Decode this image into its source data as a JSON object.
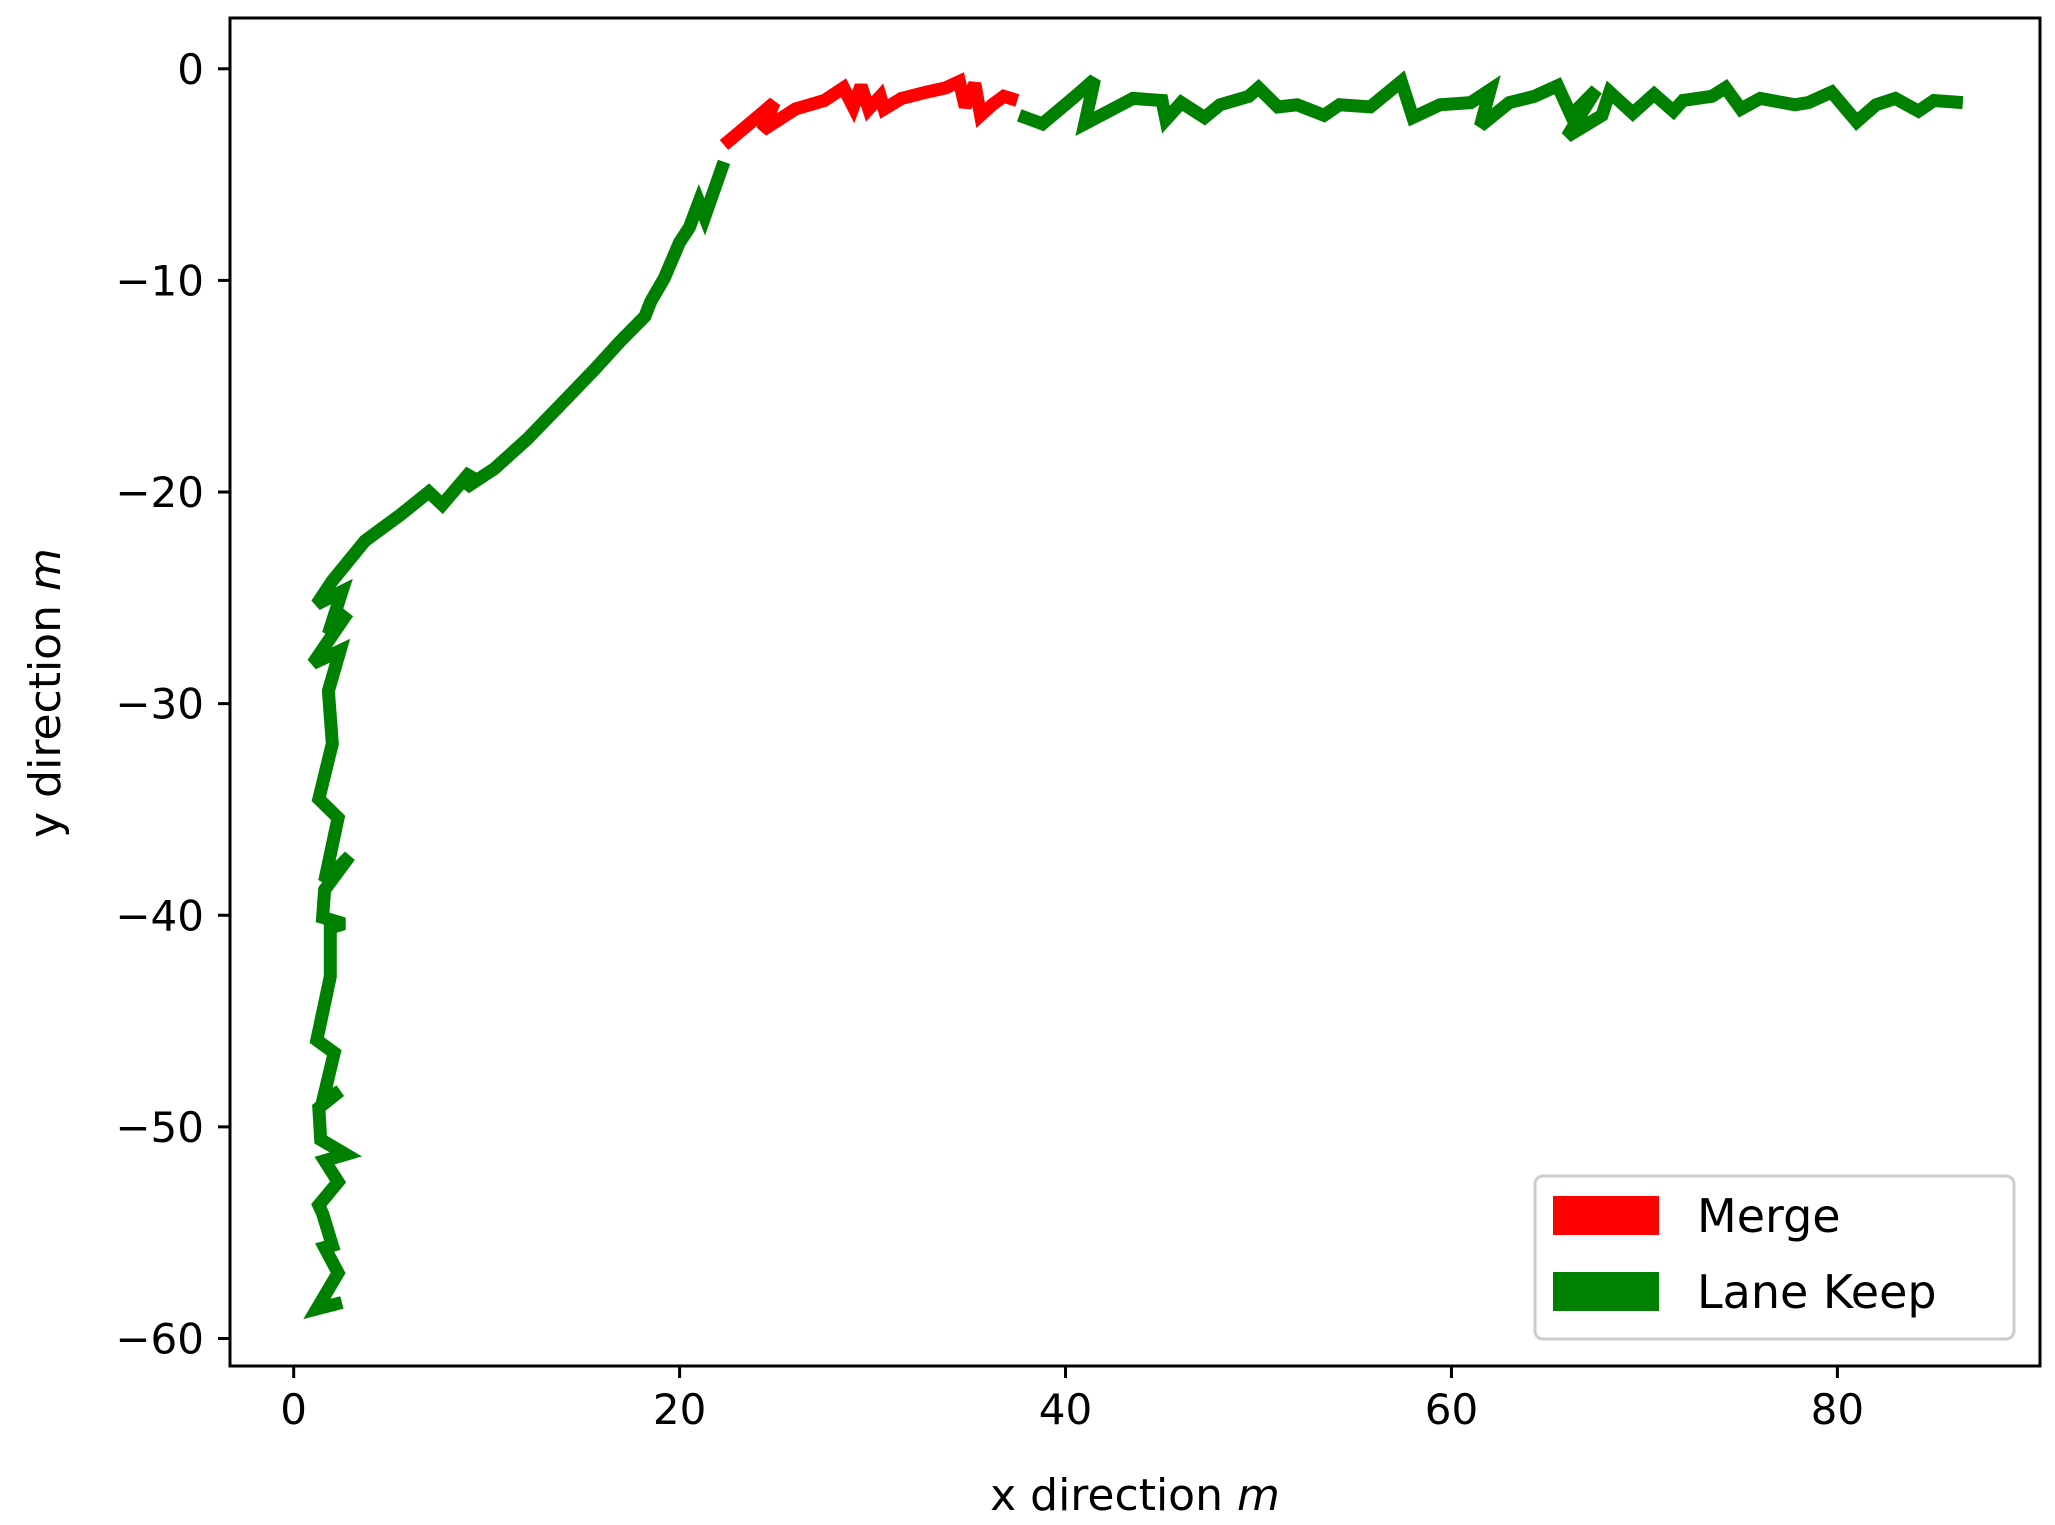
{
  "chart_data": {
    "type": "line",
    "xlabel": "x direction",
    "xlabel_unit": "m",
    "ylabel": "y direction",
    "ylabel_unit": "m",
    "xlim": [
      -3.3,
      90.5
    ],
    "ylim": [
      -61.3,
      2.4
    ],
    "xticks": [
      0,
      20,
      40,
      60,
      80
    ],
    "yticks": [
      0,
      -10,
      -20,
      -30,
      -40,
      -50,
      -60
    ],
    "xtick_labels": [
      "0",
      "20",
      "40",
      "60",
      "80"
    ],
    "ytick_labels": [
      "0",
      "−10",
      "−20",
      "−30",
      "−40",
      "−50",
      "−60"
    ],
    "grid": false,
    "legend_position": "lower-right",
    "series": [
      {
        "name": "Lane Keep",
        "color": "#008000",
        "points": [
          [
            2.5,
            -58.3
          ],
          [
            1.2,
            -58.6
          ],
          [
            2.3,
            -56.9
          ],
          [
            1.6,
            -55.7
          ],
          [
            2.0,
            -55.6
          ],
          [
            1.5,
            -54.1
          ],
          [
            1.3,
            -53.7
          ],
          [
            2.3,
            -52.6
          ],
          [
            1.6,
            -51.6
          ],
          [
            2.7,
            -51.3
          ],
          [
            1.4,
            -50.6
          ],
          [
            1.3,
            -49.1
          ],
          [
            2.4,
            -48.3
          ],
          [
            1.5,
            -48.8
          ],
          [
            2.1,
            -46.5
          ],
          [
            1.2,
            -45.9
          ],
          [
            1.9,
            -42.9
          ],
          [
            1.9,
            -40.6
          ],
          [
            2.6,
            -40.4
          ],
          [
            1.5,
            -40.1
          ],
          [
            1.6,
            -38.8
          ],
          [
            2.9,
            -37.2
          ],
          [
            1.6,
            -38.4
          ],
          [
            2.3,
            -35.4
          ],
          [
            1.3,
            -34.5
          ],
          [
            2.0,
            -31.9
          ],
          [
            1.8,
            -29.4
          ],
          [
            2.4,
            -27.5
          ],
          [
            1.0,
            -28.1
          ],
          [
            2.8,
            -25.7
          ],
          [
            1.8,
            -26.7
          ],
          [
            2.5,
            -24.7
          ],
          [
            1.2,
            -25.3
          ],
          [
            2.0,
            -24.2
          ],
          [
            3.7,
            -22.3
          ],
          [
            5.5,
            -21.1
          ],
          [
            7.0,
            -20.0
          ],
          [
            7.7,
            -20.6
          ],
          [
            9.2,
            -19.0
          ],
          [
            8.9,
            -19.8
          ],
          [
            10.4,
            -18.9
          ],
          [
            12.1,
            -17.5
          ],
          [
            13.8,
            -15.9
          ],
          [
            15.6,
            -14.2
          ],
          [
            16.9,
            -12.9
          ],
          [
            18.2,
            -11.7
          ],
          [
            18.5,
            -11.0
          ],
          [
            19.2,
            -9.9
          ],
          [
            20.0,
            -8.2
          ],
          [
            20.5,
            -7.5
          ],
          [
            21.0,
            -6.3
          ],
          [
            21.3,
            -7.0
          ],
          [
            22.3,
            -4.4
          ]
        ]
      },
      {
        "name": "Merge",
        "color": "#ff0000",
        "points": [
          [
            22.3,
            -3.6
          ],
          [
            24.0,
            -2.3
          ],
          [
            24.9,
            -1.6
          ],
          [
            24.3,
            -2.9
          ],
          [
            26.0,
            -1.9
          ],
          [
            27.5,
            -1.5
          ],
          [
            28.5,
            -0.9
          ],
          [
            29.0,
            -1.8
          ],
          [
            29.4,
            -0.8
          ],
          [
            29.8,
            -1.9
          ],
          [
            30.4,
            -1.3
          ],
          [
            30.6,
            -1.9
          ],
          [
            31.5,
            -1.4
          ],
          [
            32.8,
            -1.1
          ],
          [
            33.8,
            -0.9
          ],
          [
            34.5,
            -0.6
          ],
          [
            34.8,
            -1.8
          ],
          [
            35.3,
            -0.7
          ],
          [
            35.6,
            -2.2
          ],
          [
            36.2,
            -1.7
          ],
          [
            36.8,
            -1.3
          ],
          [
            37.5,
            -1.5
          ]
        ]
      },
      {
        "name": "Lane Keep",
        "color": "#008000",
        "points": [
          [
            37.6,
            -2.2
          ],
          [
            38.8,
            -2.6
          ],
          [
            40.5,
            -1.3
          ],
          [
            41.5,
            -0.5
          ],
          [
            41.0,
            -2.6
          ],
          [
            43.5,
            -1.4
          ],
          [
            45.0,
            -1.5
          ],
          [
            45.2,
            -2.4
          ],
          [
            46.0,
            -1.6
          ],
          [
            47.2,
            -2.3
          ],
          [
            48.0,
            -1.7
          ],
          [
            49.5,
            -1.3
          ],
          [
            50.0,
            -0.9
          ],
          [
            51.0,
            -1.8
          ],
          [
            52.0,
            -1.7
          ],
          [
            53.4,
            -2.2
          ],
          [
            54.2,
            -1.7
          ],
          [
            55.8,
            -1.8
          ],
          [
            57.4,
            -0.6
          ],
          [
            58.0,
            -2.3
          ],
          [
            59.4,
            -1.7
          ],
          [
            61.0,
            -1.6
          ],
          [
            62.0,
            -1.0
          ],
          [
            61.5,
            -2.7
          ],
          [
            63.0,
            -1.6
          ],
          [
            64.3,
            -1.3
          ],
          [
            65.5,
            -0.8
          ],
          [
            66.2,
            -2.2
          ],
          [
            67.5,
            -1.0
          ],
          [
            66.0,
            -3.2
          ],
          [
            67.8,
            -2.2
          ],
          [
            68.2,
            -1.1
          ],
          [
            69.4,
            -2.1
          ],
          [
            70.5,
            -1.2
          ],
          [
            71.5,
            -2.0
          ],
          [
            72.0,
            -1.5
          ],
          [
            73.5,
            -1.3
          ],
          [
            74.2,
            -0.9
          ],
          [
            75.0,
            -1.9
          ],
          [
            76.0,
            -1.4
          ],
          [
            77.8,
            -1.7
          ],
          [
            78.5,
            -1.6
          ],
          [
            79.7,
            -1.1
          ],
          [
            81.0,
            -2.5
          ],
          [
            82.0,
            -1.7
          ],
          [
            83.0,
            -1.4
          ],
          [
            84.2,
            -2.0
          ],
          [
            85.0,
            -1.5
          ],
          [
            86.5,
            -1.6
          ]
        ]
      }
    ],
    "legend": [
      {
        "label": "Merge",
        "color": "#ff0000"
      },
      {
        "label": "Lane Keep",
        "color": "#008000"
      }
    ]
  }
}
